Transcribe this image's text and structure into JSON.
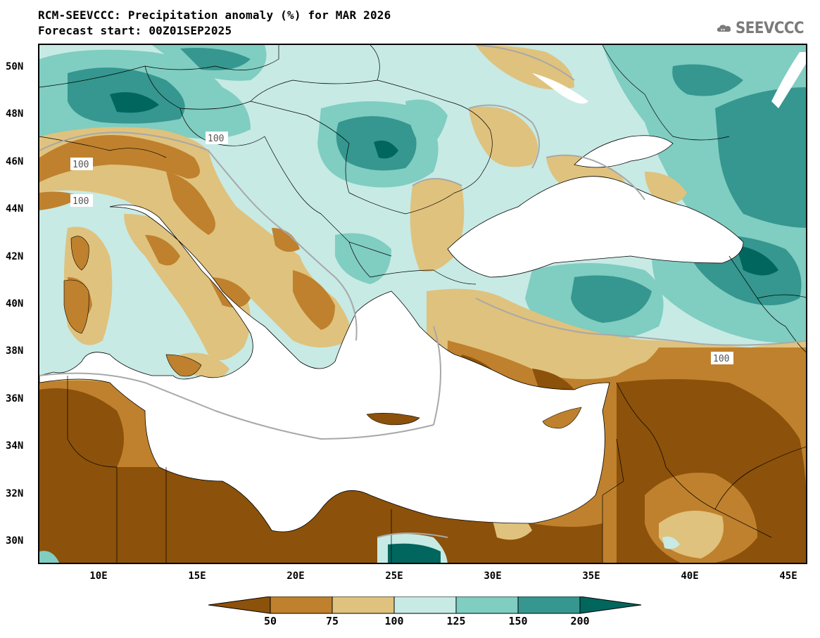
{
  "header": {
    "title_line1": "RCM-SEEVCCC: Precipitation anomaly (%) for MAR 2026",
    "title_line2": "Forecast start: 00Z01SEP2025"
  },
  "logo": {
    "text": "SEEVCCC",
    "icon": "cloud-icon"
  },
  "map": {
    "variable": "Precipitation anomaly (%)",
    "lat_labels": [
      "50N",
      "48N",
      "46N",
      "44N",
      "42N",
      "40N",
      "38N",
      "36N",
      "34N",
      "32N",
      "30N"
    ],
    "lon_labels": [
      "10E",
      "15E",
      "20E",
      "25E",
      "30E",
      "35E",
      "40E",
      "45E"
    ],
    "contour_label": "100",
    "sea_color": "#ffffff"
  },
  "colorbar": {
    "levels": [
      "50",
      "75",
      "100",
      "125",
      "150",
      "200"
    ],
    "colors": {
      "below_50": "#8c510a",
      "c50_75": "#bf812d",
      "c75_100": "#dfc27d",
      "c100_125": "#c7eae5",
      "c125_150": "#80cdc1",
      "c150_200": "#35978f",
      "above_200": "#01665e"
    }
  }
}
